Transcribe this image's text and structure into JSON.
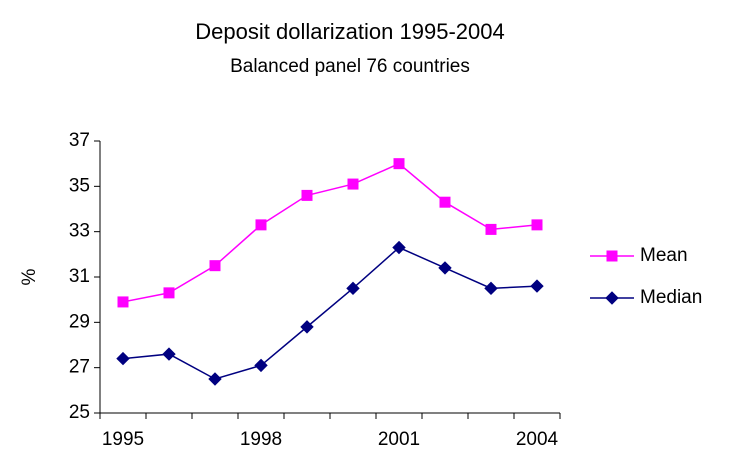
{
  "chart_data": {
    "type": "line",
    "title": "Deposit dollarization 1995-2004",
    "subtitle": "Balanced panel 76 countries",
    "y_label": "%",
    "categories": [
      "1995",
      null,
      null,
      "1998",
      null,
      null,
      "2001",
      null,
      null,
      "2004"
    ],
    "series": [
      {
        "name": "Mean",
        "color": "#ff00ff",
        "marker": "square",
        "values": [
          29.9,
          30.3,
          31.5,
          33.3,
          34.6,
          35.1,
          36.0,
          34.3,
          33.1,
          33.3
        ]
      },
      {
        "name": "Median",
        "color": "#000080",
        "marker": "diamond",
        "values": [
          27.4,
          27.6,
          26.5,
          27.1,
          28.8,
          30.5,
          32.3,
          31.4,
          30.5,
          30.6
        ]
      }
    ],
    "ylim": [
      25,
      37
    ],
    "yticks": [
      25,
      27,
      29,
      31,
      33,
      35,
      37
    ],
    "grid": false,
    "legend": "right"
  }
}
